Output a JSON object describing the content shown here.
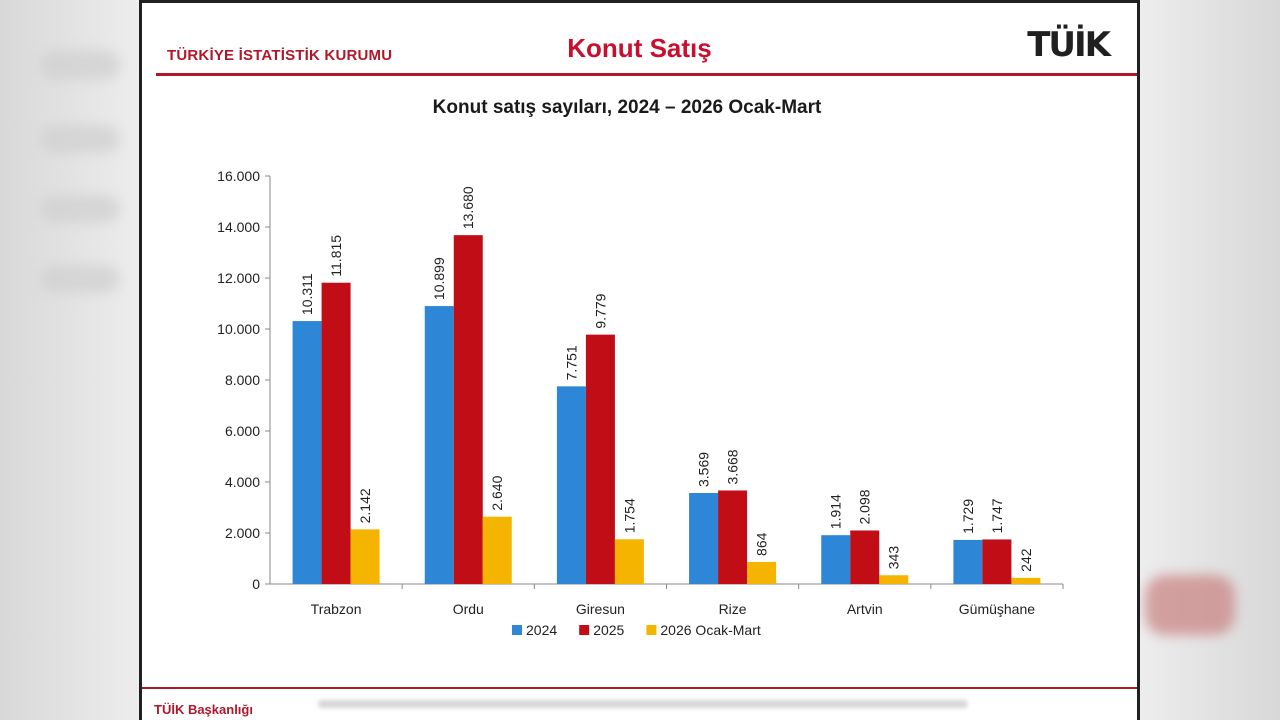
{
  "header": {
    "org": "TÜRKİYE İSTATİSTİK KURUMU",
    "title": "Konut Satış",
    "logo_text": "TÜİK"
  },
  "footer": {
    "text": "TÜİK Başkanlığı"
  },
  "colors": {
    "series_2024": "#2e86d6",
    "series_2025": "#c00d16",
    "series_2026": "#f5b400",
    "accent": "#b0182a"
  },
  "chart_data": {
    "type": "bar",
    "title": "Konut satış sayıları, 2024 – 2026 Ocak-Mart",
    "categories": [
      "Trabzon",
      "Ordu",
      "Giresun",
      "Rize",
      "Artvin",
      "Gümüşhane"
    ],
    "series": [
      {
        "name": "2024",
        "values": [
          10311,
          10899,
          7751,
          3569,
          1914,
          1729
        ],
        "labels": [
          "10.311",
          "10.899",
          "7.751",
          "3.569",
          "1.914",
          "1.729"
        ]
      },
      {
        "name": "2025",
        "values": [
          11815,
          13680,
          9779,
          3668,
          2098,
          1747
        ],
        "labels": [
          "11.815",
          "13.680",
          "9.779",
          "3.668",
          "2.098",
          "1.747"
        ]
      },
      {
        "name": "2026 Ocak-Mart",
        "values": [
          2142,
          2640,
          1754,
          864,
          343,
          242
        ],
        "labels": [
          "2.142",
          "2.640",
          "1.754",
          "864",
          "343",
          "242"
        ]
      }
    ],
    "ylim": [
      0,
      16000
    ],
    "yticks": [
      0,
      2000,
      4000,
      6000,
      8000,
      10000,
      12000,
      14000,
      16000
    ],
    "ytick_labels": [
      "0",
      "2.000",
      "4.000",
      "6.000",
      "8.000",
      "10.000",
      "12.000",
      "14.000",
      "16.000"
    ],
    "grid": false,
    "legend": "bottom"
  }
}
